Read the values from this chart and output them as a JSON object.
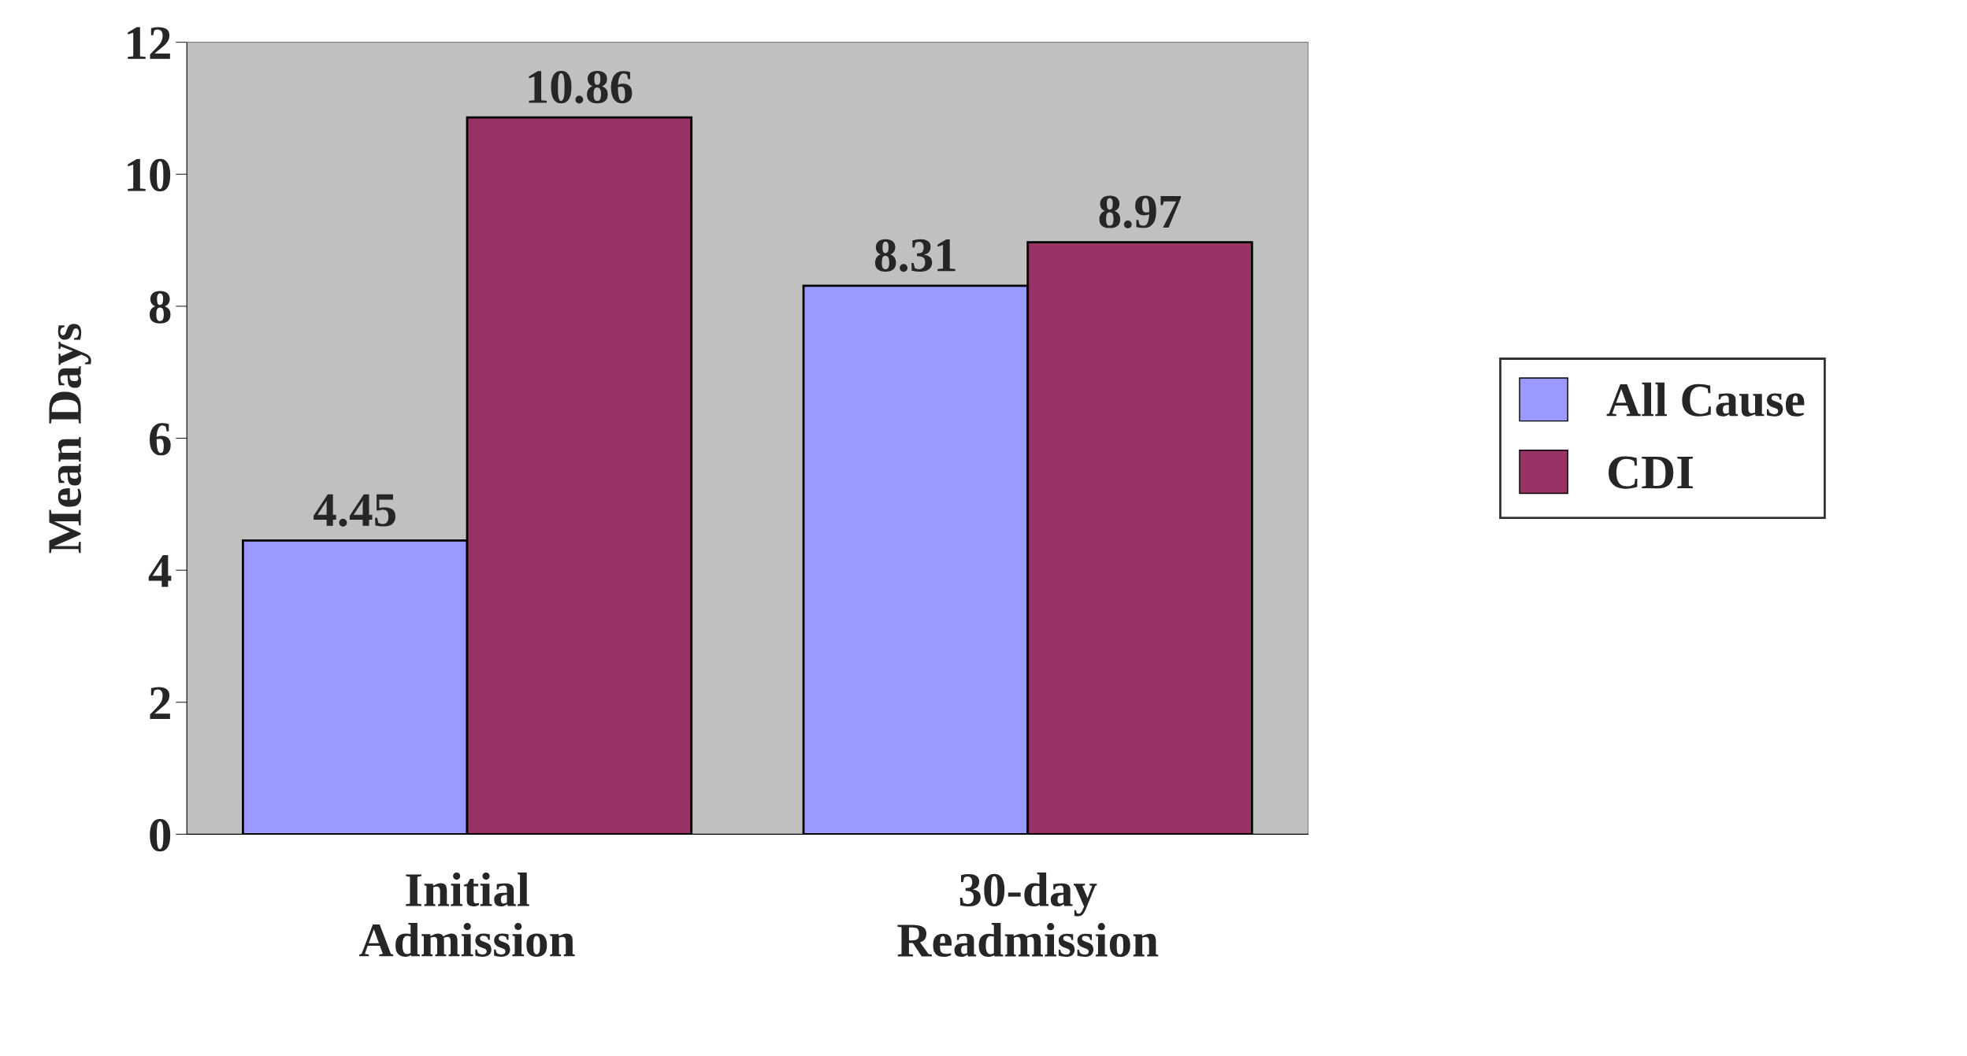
{
  "chart_data": {
    "type": "bar",
    "ylabel": "Mean Days",
    "categories": [
      "Initial\nAdmission",
      "30-day\nReadmission"
    ],
    "series": [
      {
        "name": "All Cause",
        "color": "#9999ff",
        "values": [
          4.45,
          8.31
        ]
      },
      {
        "name": "CDI",
        "color": "#993366",
        "values": [
          10.86,
          8.97
        ]
      }
    ],
    "ylim": [
      0,
      12
    ],
    "yticks": [
      0,
      2,
      4,
      6,
      8,
      10,
      12
    ],
    "data_labels": true,
    "grid": false,
    "legend": "right"
  }
}
